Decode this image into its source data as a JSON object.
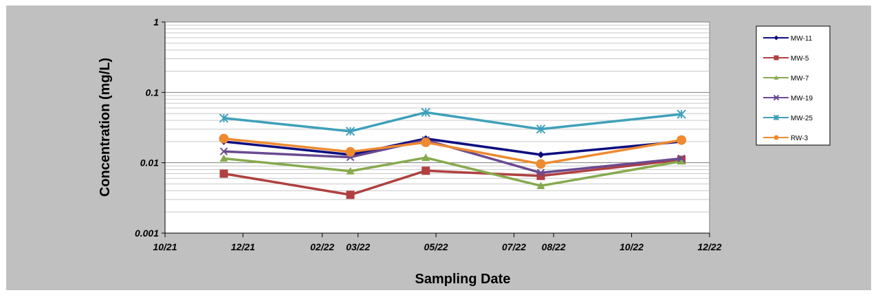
{
  "chart_data": {
    "type": "line",
    "xlabel": "Sampling Date",
    "ylabel": "Concentration (mg/L)",
    "y_scale": "log",
    "ylim": [
      0.001,
      1
    ],
    "y_ticks": [
      "0.001",
      "0.01",
      "0.1",
      "1"
    ],
    "xlim": [
      "2021-10-01",
      "2022-12-01"
    ],
    "x_ticks": [
      {
        "date": "2021-10-01",
        "label": "10/21"
      },
      {
        "date": "2021-12-01",
        "label": "12/21"
      },
      {
        "date": "2022-02-01",
        "label": "02/22"
      },
      {
        "date": "2022-03-01",
        "label": "03/22"
      },
      {
        "date": "2022-05-01",
        "label": "05/22"
      },
      {
        "date": "2022-07-01",
        "label": "07/22"
      },
      {
        "date": "2022-08-01",
        "label": "08/22"
      },
      {
        "date": "2022-10-01",
        "label": "10/22"
      },
      {
        "date": "2022-12-01",
        "label": "12/22"
      }
    ],
    "grid": "horizontal-major-minor",
    "legend_position": "right",
    "x": [
      "2021-11-16",
      "2022-02-23",
      "2022-04-23",
      "2022-07-22",
      "2022-11-09"
    ],
    "series": [
      {
        "name": "MW-11",
        "color": "#0d0d80",
        "marker": "diamond",
        "values": [
          0.02,
          0.013,
          0.022,
          0.013,
          0.02
        ]
      },
      {
        "name": "MW-5",
        "color": "#b04040",
        "marker": "square",
        "values": [
          0.007,
          0.0035,
          0.0077,
          0.0065,
          0.011
        ]
      },
      {
        "name": "MW-7",
        "color": "#86aa4e",
        "marker": "triangle",
        "values": [
          0.0115,
          0.0076,
          0.0118,
          0.0047,
          0.0105
        ]
      },
      {
        "name": "MW-19",
        "color": "#6a4a90",
        "marker": "x",
        "values": [
          0.0145,
          0.012,
          0.021,
          0.0072,
          0.0115
        ]
      },
      {
        "name": "MW-25",
        "color": "#3ea0ba",
        "marker": "star",
        "values": [
          0.043,
          0.028,
          0.052,
          0.03,
          0.049
        ]
      },
      {
        "name": "RW-3",
        "color": "#ee8a30",
        "marker": "circle",
        "values": [
          0.022,
          0.0143,
          0.0195,
          0.0096,
          0.021
        ]
      }
    ]
  }
}
